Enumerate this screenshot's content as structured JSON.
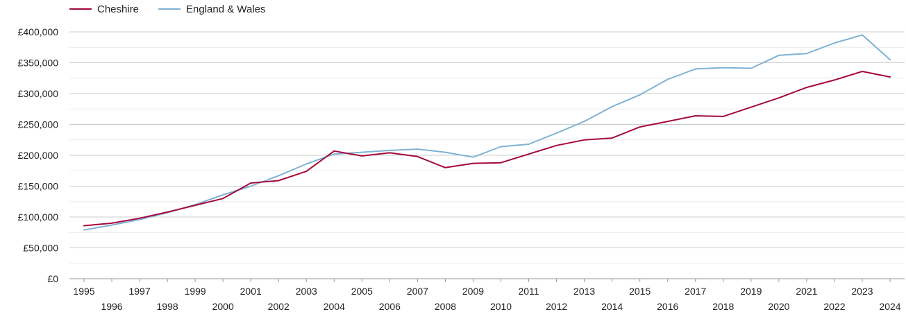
{
  "chart_data": {
    "type": "line",
    "title": "",
    "xlabel": "",
    "ylabel": "",
    "legend_position": "top-left",
    "grid": true,
    "ylim": [
      0,
      400000
    ],
    "y_ticks": [
      0,
      50000,
      100000,
      150000,
      200000,
      250000,
      300000,
      350000,
      400000
    ],
    "y_tick_labels": [
      "£0",
      "£50,000",
      "£100,000",
      "£150,000",
      "£200,000",
      "£250,000",
      "£300,000",
      "£350,000",
      "£400,000"
    ],
    "x": [
      1995,
      1996,
      1997,
      1998,
      1999,
      2000,
      2001,
      2002,
      2003,
      2004,
      2005,
      2006,
      2007,
      2008,
      2009,
      2010,
      2011,
      2012,
      2013,
      2014,
      2015,
      2016,
      2017,
      2018,
      2019,
      2020,
      2021,
      2022,
      2023,
      2024
    ],
    "series": [
      {
        "name": "Cheshire",
        "color": "#a5093a",
        "values": [
          86000,
          90000,
          98000,
          108000,
          119000,
          130000,
          155000,
          159000,
          174000,
          207000,
          199000,
          204000,
          198000,
          180000,
          187000,
          188000,
          202000,
          216000,
          225000,
          228000,
          246000,
          255000,
          264000,
          263000,
          278000,
          293000,
          310000,
          322000,
          336000,
          327000
        ]
      },
      {
        "name": "England & Wales",
        "color": "#7eb2d4",
        "values": [
          79000,
          87000,
          96000,
          107000,
          120000,
          136000,
          150000,
          167000,
          186000,
          202000,
          205000,
          208000,
          210000,
          205000,
          197000,
          214000,
          218000,
          236000,
          255000,
          279000,
          298000,
          323000,
          340000,
          342000,
          341000,
          362000,
          365000,
          382000,
          395000,
          355000
        ]
      }
    ]
  }
}
